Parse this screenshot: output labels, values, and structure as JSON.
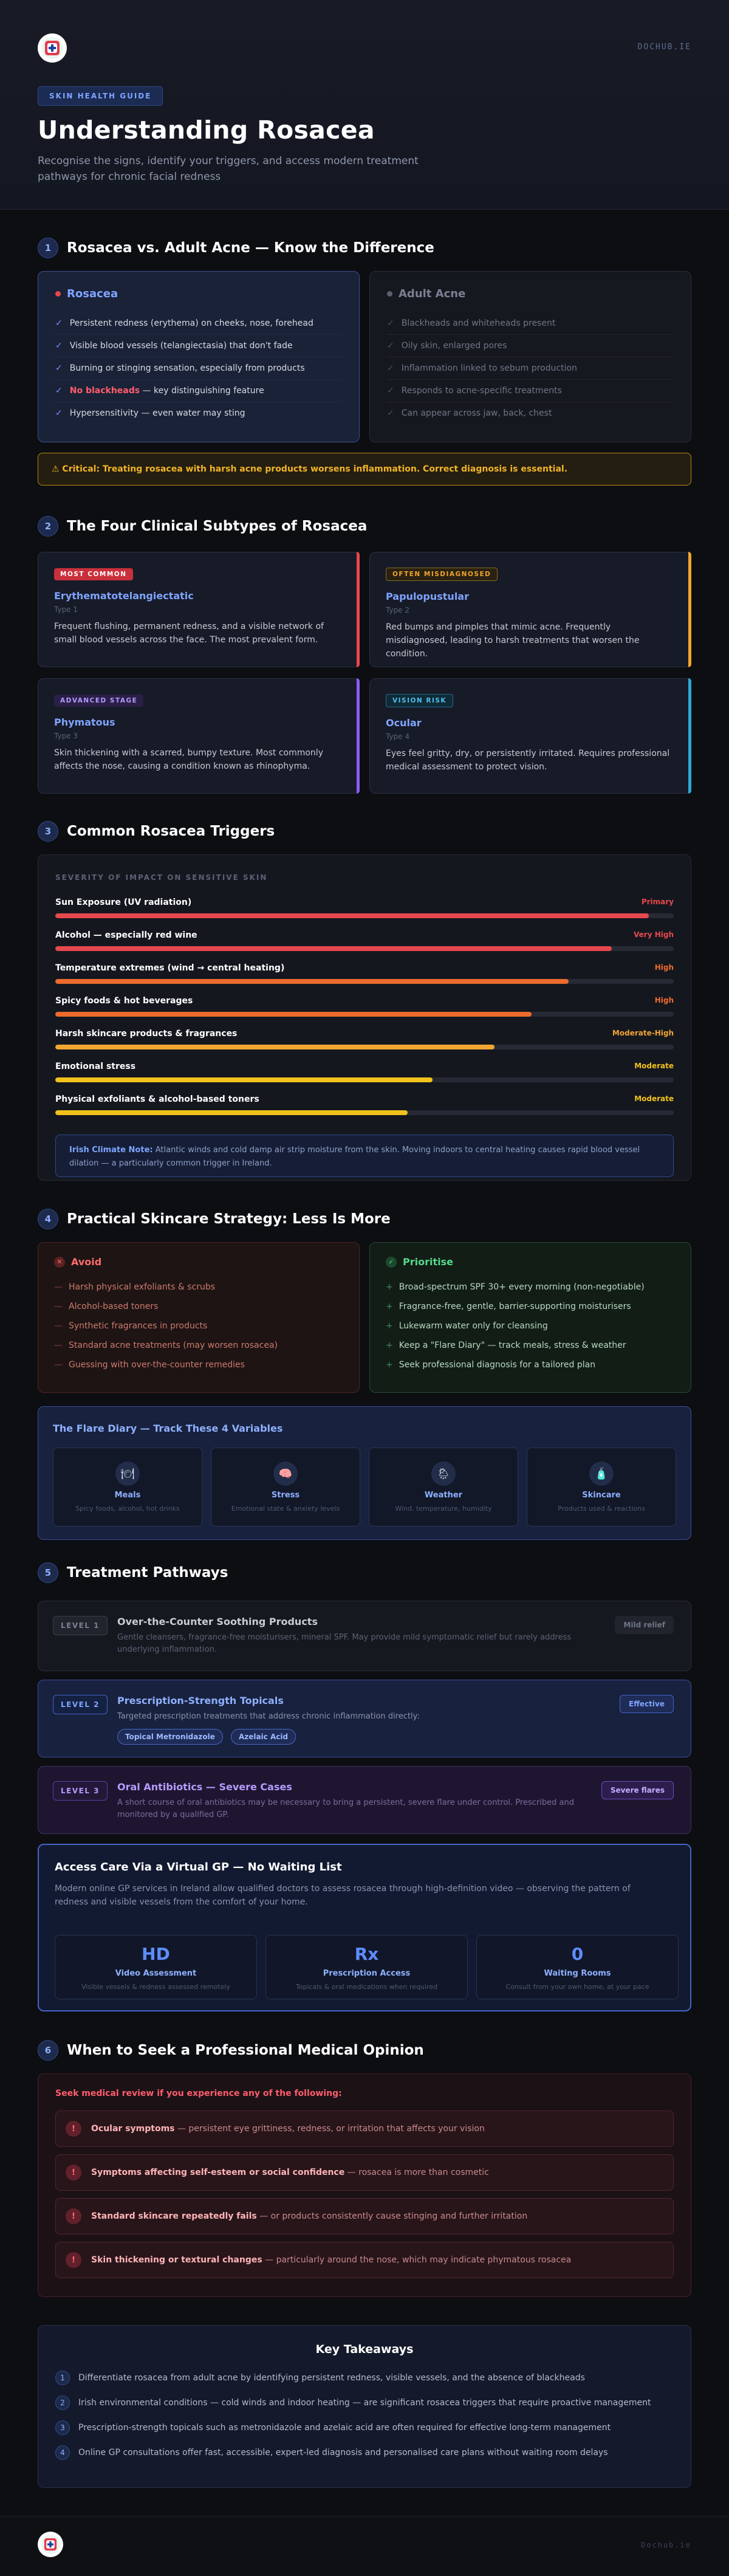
{
  "header": {
    "brand": "DOCHUB.IE",
    "tag": "SKIN HEALTH GUIDE",
    "title": "Understanding Rosacea",
    "subtitle": "Recognise the signs, identify your triggers, and access modern treatment pathways for chronic facial redness"
  },
  "s1": {
    "num": "1",
    "title": "Rosacea vs. Adult Acne — Know the Difference",
    "rosacea_title": "Rosacea",
    "rosacea_items": [
      "Persistent redness (erythema) on cheeks, nose, forehead",
      "Visible blood vessels (telangiectasia) that don't fade",
      "Burning or stinging sensation, especially from products",
      "No blackheads",
      "Hypersensitivity — even water may sting"
    ],
    "rosacea_item4_rest": " — key distinguishing feature",
    "acne_title": "Adult Acne",
    "acne_items": [
      "Blackheads and whiteheads present",
      "Oily skin, enlarged pores",
      "Inflammation linked to sebum production",
      "Responds to acne-specific treatments",
      "Can appear across jaw, back, chest"
    ],
    "warning": "⚠ Critical: Treating rosacea with harsh acne products worsens inflammation. Correct diagnosis is essential."
  },
  "s2": {
    "num": "2",
    "title": "The Four Clinical Subtypes of Rosacea",
    "cards": [
      {
        "badge": "MOST COMMON",
        "name": "Erythematotelangiectatic",
        "type": "Type 1",
        "desc": "Frequent flushing, permanent redness, and a visible network of small blood vessels across the face. The most prevalent form.",
        "color": "#e5484d"
      },
      {
        "badge": "OFTEN MISDIAGNOSED",
        "name": "Papulopustular",
        "type": "Type 2",
        "desc": "Red bumps and pimples that mimic acne. Frequently misdiagnosed, leading to harsh treatments that worsen the condition.",
        "color": "#f0a532"
      },
      {
        "badge": "ADVANCED STAGE",
        "name": "Phymatous",
        "type": "Type 3",
        "desc": "Skin thickening with a scarred, bumpy texture. Most commonly affects the nose, causing a condition known as rhinophyma.",
        "color": "#8b5cf6"
      },
      {
        "badge": "VISION RISK",
        "name": "Ocular",
        "type": "Type 4",
        "desc": "Eyes feel gritty, dry, or persistently irritated. Requires professional medical assessment to protect vision.",
        "color": "#2ea8d6"
      }
    ]
  },
  "s3": {
    "num": "3",
    "title": "Common Rosacea Triggers",
    "caption": "SEVERITY OF IMPACT ON SENSITIVE SKIN",
    "triggers": [
      {
        "name": "Sun Exposure (UV radiation)",
        "severity": "Primary",
        "level": 0.96,
        "color": "#e5484d"
      },
      {
        "name": "Alcohol — especially red wine",
        "severity": "Very High",
        "level": 0.9,
        "color": "#e5484d"
      },
      {
        "name": "Temperature extremes (wind → central heating)",
        "severity": "High",
        "level": 0.83,
        "color": "#ec6b2d"
      },
      {
        "name": "Spicy foods & hot beverages",
        "severity": "High",
        "level": 0.77,
        "color": "#ec6b2d"
      },
      {
        "name": "Harsh skincare products & fragrances",
        "severity": "Moderate-High",
        "level": 0.71,
        "color": "#f0a532"
      },
      {
        "name": "Emotional stress",
        "severity": "Moderate",
        "level": 0.61,
        "color": "#f1c21b"
      },
      {
        "name": "Physical exfoliants & alcohol-based toners",
        "severity": "Moderate",
        "level": 0.57,
        "color": "#f1c21b"
      }
    ],
    "note_label": "Irish Climate Note:",
    "note_text": " Atlantic winds and cold damp air strip moisture from the skin. Moving indoors to central heating causes rapid blood vessel dilation — a particularly common trigger in Ireland."
  },
  "s4": {
    "num": "4",
    "title": "Practical Skincare Strategy: Less Is More",
    "avoid_title": "Avoid",
    "avoid_items": [
      "Harsh physical exfoliants & scrubs",
      "Alcohol-based toners",
      "Synthetic fragrances in products",
      "Standard acne treatments (may worsen rosacea)",
      "Guessing with over-the-counter remedies"
    ],
    "prior_title": "Prioritise",
    "prior_items": [
      "Broad-spectrum SPF 30+ every morning (non-negotiable)",
      "Fragrance-free, gentle, barrier-supporting moisturisers",
      "Lukewarm water only for cleansing",
      "Keep a \"Flare Diary\" — track meals, stress & weather",
      "Seek professional diagnosis for a tailored plan"
    ],
    "flare_title": "The Flare Diary — Track These 4 Variables",
    "flare": [
      {
        "icon": "🍽",
        "title": "Meals",
        "desc": "Spicy foods, alcohol, hot drinks"
      },
      {
        "icon": "🧠",
        "title": "Stress",
        "desc": "Emotional state & anxiety levels"
      },
      {
        "icon": "🌦",
        "title": "Weather",
        "desc": "Wind, temperature, humidity"
      },
      {
        "icon": "🧴",
        "title": "Skincare",
        "desc": "Products used & reactions"
      }
    ]
  },
  "s5": {
    "num": "5",
    "title": "Treatment Pathways",
    "levels": [
      {
        "label": "LEVEL 1",
        "title": "Over-the-Counter Soothing Products",
        "desc": "Gentle cleansers, fragrance-free moisturisers, mineral SPF. May provide mild symptomatic relief but rarely address underlying inflammation.",
        "pill": "Mild relief"
      },
      {
        "label": "LEVEL 2",
        "title": "Prescription-Strength Topicals",
        "desc": "Targeted prescription treatments that address chronic inflammation directly:",
        "pill": "Effective",
        "chips": [
          "Topical Metronidazole",
          "Azelaic Acid"
        ]
      },
      {
        "label": "LEVEL 3",
        "title": "Oral Antibiotics — Severe Cases",
        "desc": "A short course of oral antibiotics may be necessary to bring a persistent, severe flare under control. Prescribed and monitored by a qualified GP.",
        "pill": "Severe flares"
      }
    ],
    "virtual_title": "Access Care Via a Virtual GP — No Waiting List",
    "virtual_desc": "Modern online GP services in Ireland allow qualified doctors to assess rosacea through high-definition video — observing the pattern of redness and visible vessels from the comfort of your home.",
    "virtual": [
      {
        "big": "HD",
        "title": "Video Assessment",
        "desc": "Visible vessels & redness assessed remotely"
      },
      {
        "big": "Rx",
        "title": "Prescription Access",
        "desc": "Topicals & oral medications when required"
      },
      {
        "big": "0",
        "title": "Waiting Rooms",
        "desc": "Consult from your own home, at your pace"
      }
    ]
  },
  "s6": {
    "num": "6",
    "title": "When to Seek a Professional Medical Opinion",
    "caption": "Seek medical review if you experience any of the following:",
    "items": [
      {
        "bold": "Ocular symptoms",
        "rest": " — persistent eye grittiness, redness, or irritation that affects your vision"
      },
      {
        "bold": "Symptoms affecting self-esteem or social confidence",
        "rest": " — rosacea is more than cosmetic"
      },
      {
        "bold": "Standard skincare repeatedly fails",
        "rest": " — or products consistently cause stinging and further irritation"
      },
      {
        "bold": "Skin thickening or textural changes",
        "rest": " — particularly around the nose, which may indicate phymatous rosacea"
      }
    ]
  },
  "takeaways": {
    "title": "Key Takeaways",
    "items": [
      "Differentiate rosacea from adult acne by identifying persistent redness, visible vessels, and the absence of blackheads",
      "Irish environmental conditions — cold winds and indoor heating — are significant rosacea triggers that require proactive management",
      "Prescription-strength topicals such as metronidazole and azelaic acid are often required for effective long-term management",
      "Online GP consultations offer fast, accessible, expert-led diagnosis and personalised care plans without waiting room delays"
    ]
  },
  "footer": {
    "brand": "Dochub.ie"
  }
}
